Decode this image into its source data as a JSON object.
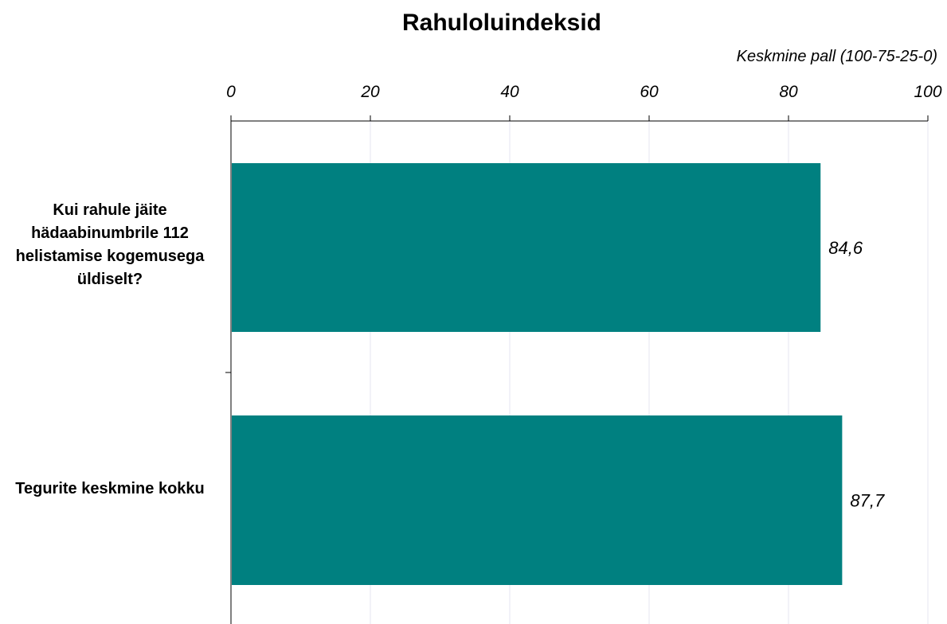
{
  "chart_data": {
    "type": "bar",
    "orientation": "horizontal",
    "title": "Rahuloluindeksid",
    "xlabel": "Keskmine pall (100-75-25-0)",
    "ylabel": "",
    "xlim": [
      0,
      100
    ],
    "ticks": [
      0,
      20,
      40,
      60,
      80,
      100
    ],
    "tick_labels": [
      "0",
      "20",
      "40",
      "60",
      "80",
      "100"
    ],
    "categories": [
      "Kui rahule jäite hädaabinumbrile 112 helistamise kogemusega üldiselt?",
      "Tegurite keskmine kokku"
    ],
    "values": [
      84.6,
      87.7
    ],
    "value_labels": [
      "84,6",
      "87,7"
    ],
    "bar_color": "#008080",
    "grid": true,
    "legend": "none"
  }
}
